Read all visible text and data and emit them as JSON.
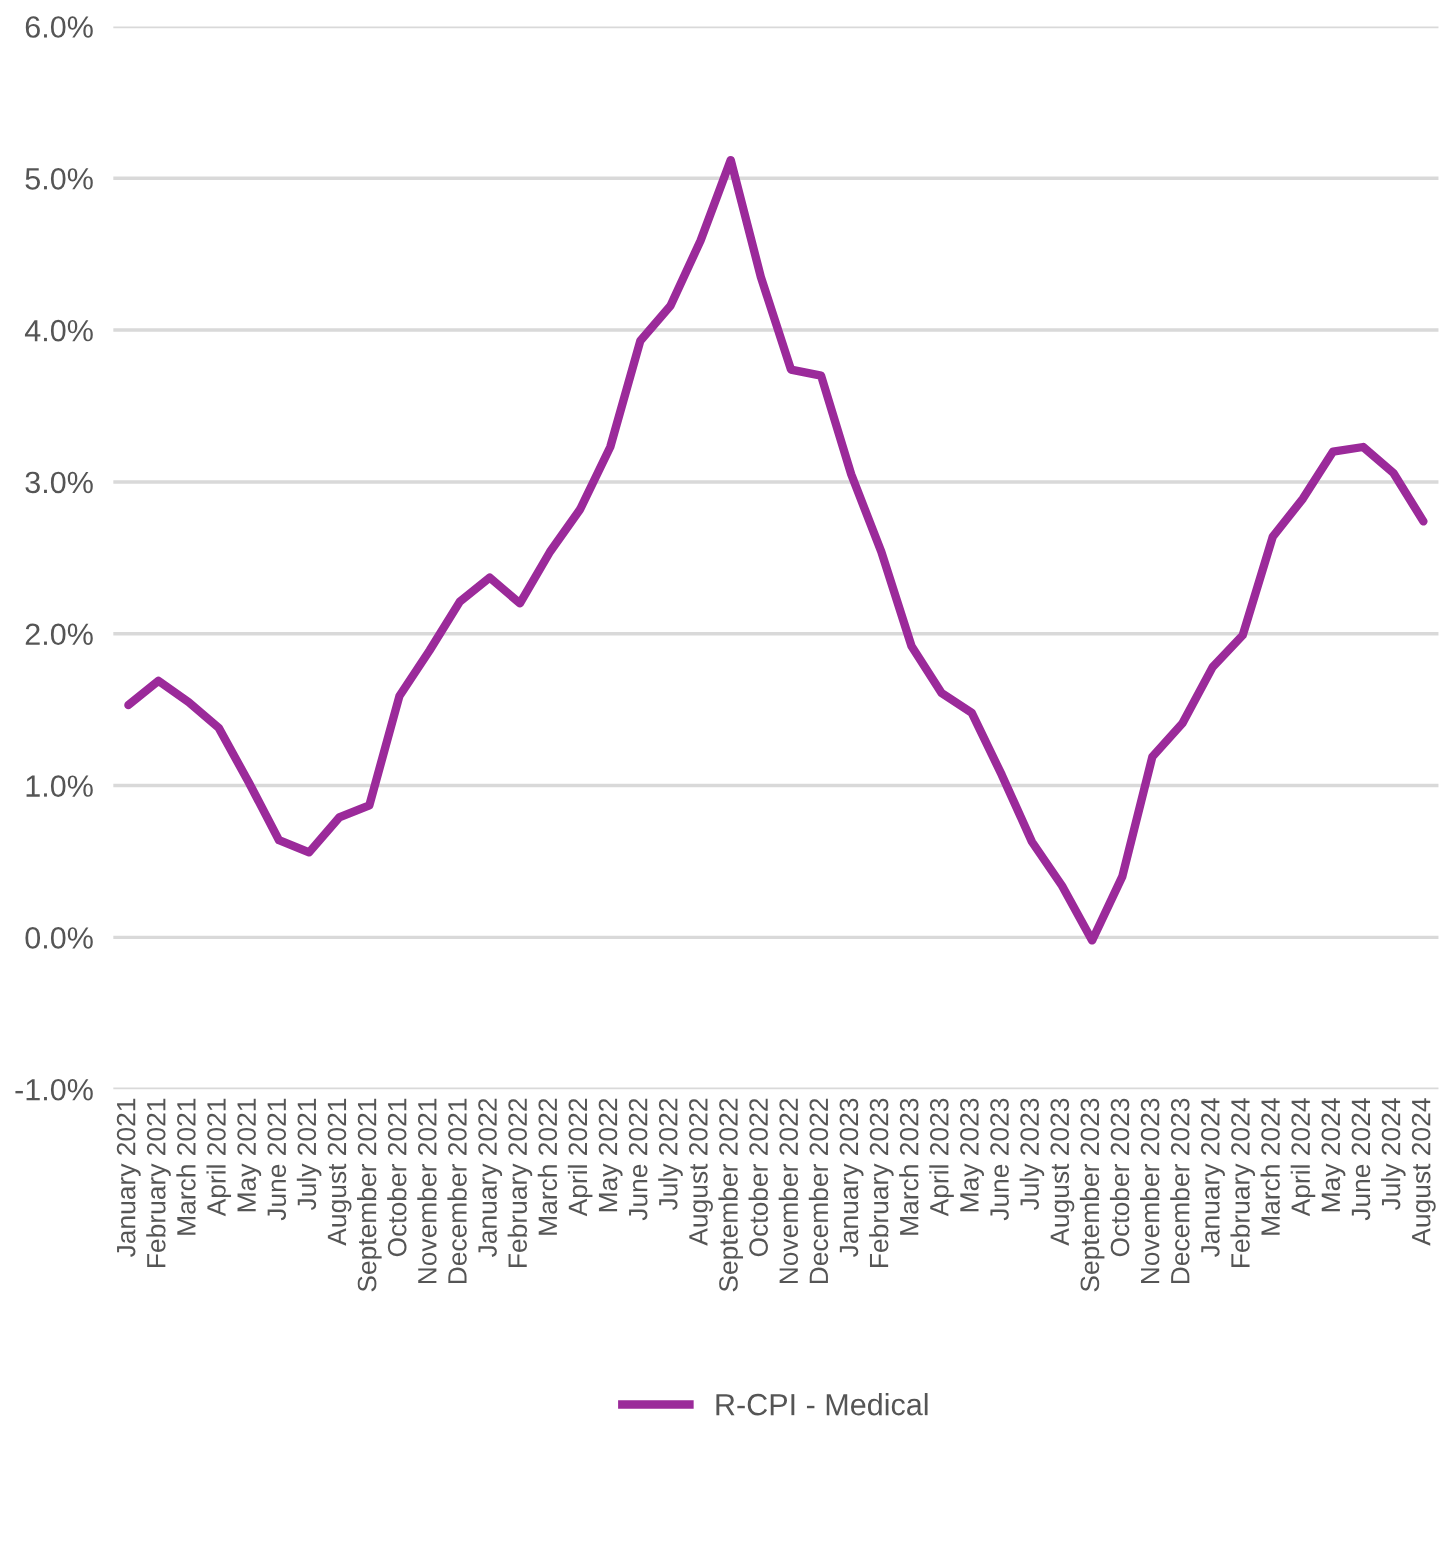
{
  "chart_data": {
    "type": "line",
    "categories": [
      "January 2021",
      "February 2021",
      "March 2021",
      "April 2021",
      "May 2021",
      "June 2021",
      "July 2021",
      "August 2021",
      "September 2021",
      "October 2021",
      "November 2021",
      "December 2021",
      "January 2022",
      "February 2022",
      "March 2022",
      "April 2022",
      "May 2022",
      "June 2022",
      "July 2022",
      "August 2022",
      "September 2022",
      "October 2022",
      "November 2022",
      "December 2022",
      "January 2023",
      "February 2023",
      "March 2023",
      "April 2023",
      "May 2023",
      "June 2023",
      "July 2023",
      "August 2023",
      "September 2023",
      "October 2023",
      "November 2023",
      "December 2023",
      "January 2024",
      "February 2024",
      "March 2024",
      "April 2024",
      "May 2024",
      "June 2024",
      "July 2024",
      "August 2024"
    ],
    "series": [
      {
        "name": "R-CPI - Medical",
        "color": "#9b2a9a",
        "values": [
          1.53,
          1.69,
          1.55,
          1.38,
          1.02,
          0.64,
          0.56,
          0.79,
          0.87,
          1.59,
          1.89,
          2.21,
          2.37,
          2.2,
          2.54,
          2.82,
          3.23,
          3.93,
          4.16,
          4.59,
          5.12,
          4.35,
          3.74,
          3.7,
          3.05,
          2.54,
          1.92,
          1.61,
          1.48,
          1.07,
          0.63,
          0.34,
          -0.02,
          0.4,
          1.19,
          1.41,
          1.78,
          1.99,
          2.64,
          2.89,
          3.2,
          3.23,
          3.06,
          2.74
        ]
      }
    ],
    "ylim": [
      -1.0,
      6.0
    ],
    "yticks": [
      {
        "value": -1.0,
        "label": "-1.0%"
      },
      {
        "value": 0.0,
        "label": "0.0%"
      },
      {
        "value": 1.0,
        "label": "1.0%"
      },
      {
        "value": 2.0,
        "label": "2.0%"
      },
      {
        "value": 3.0,
        "label": "3.0%"
      },
      {
        "value": 4.0,
        "label": "4.0%"
      },
      {
        "value": 5.0,
        "label": "5.0%"
      },
      {
        "value": 6.0,
        "label": "6.0%"
      }
    ],
    "grid": "y",
    "legend": "bottom",
    "marker": "none",
    "line_style": "solid"
  }
}
